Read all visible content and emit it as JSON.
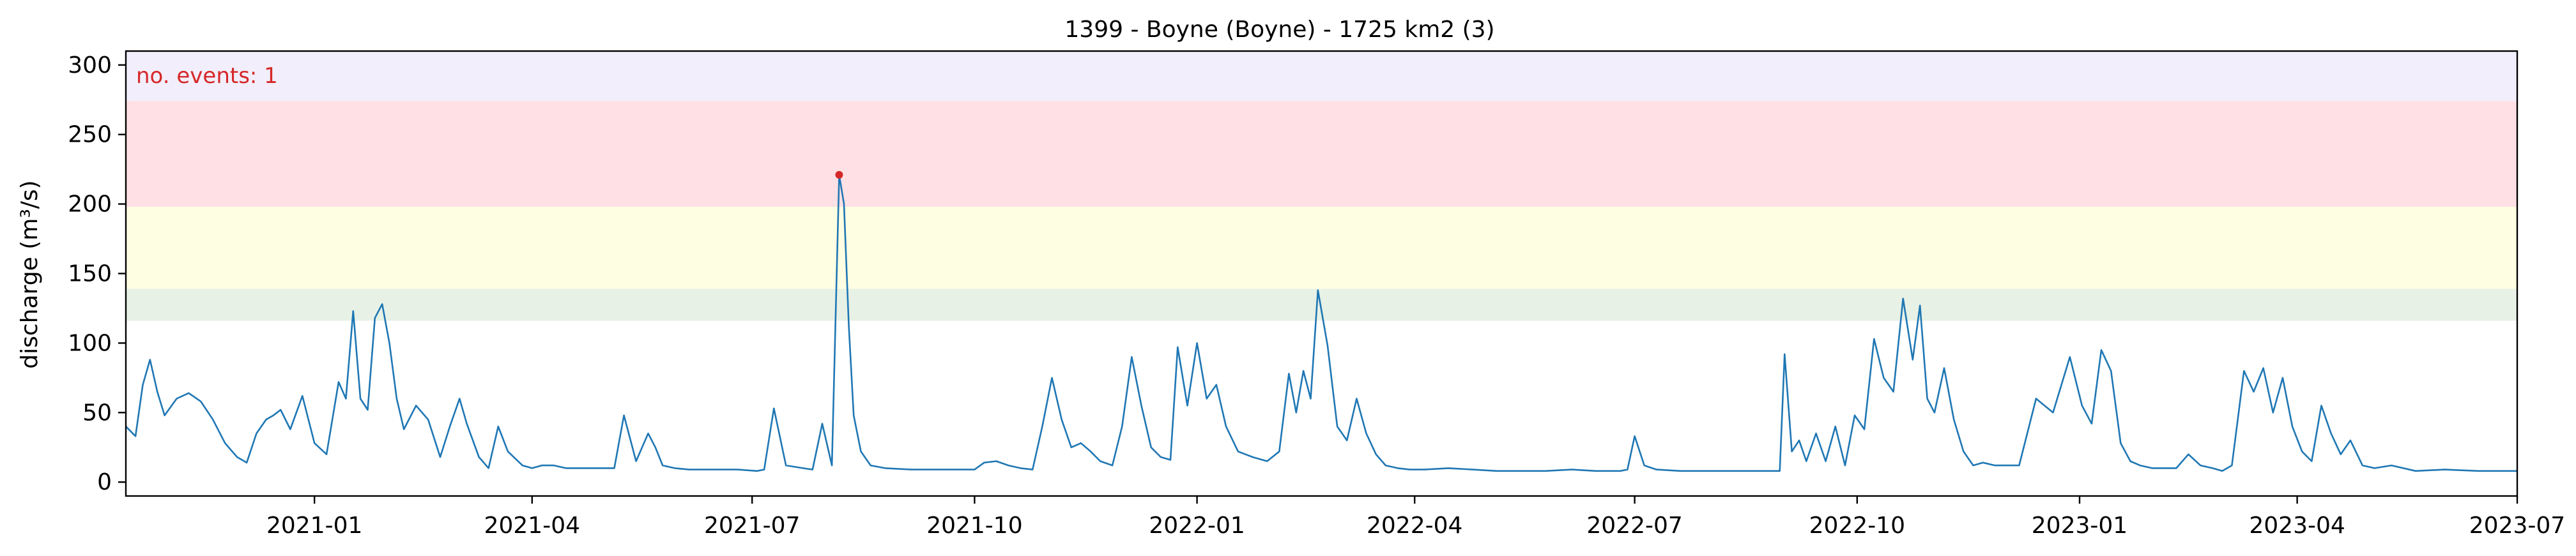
{
  "chart_data": {
    "type": "line",
    "title": "1399 - Boyne (Boyne) - 1725 km2 (3)",
    "xlabel": "",
    "ylabel": "discharge (m³/s)",
    "xlim": [
      "2020-10-15",
      "2023-07-01"
    ],
    "ylim": [
      -10,
      310
    ],
    "x_ticks": [
      "2021-01",
      "2021-04",
      "2021-07",
      "2021-10",
      "2022-01",
      "2022-04",
      "2022-07",
      "2022-10",
      "2023-01",
      "2023-04",
      "2023-07"
    ],
    "x_tick_dates": [
      "2021-01-01",
      "2021-04-01",
      "2021-07-01",
      "2021-10-01",
      "2022-01-01",
      "2022-04-01",
      "2022-07-01",
      "2022-10-01",
      "2023-01-01",
      "2023-04-01",
      "2023-07-01"
    ],
    "y_ticks": [
      0,
      50,
      100,
      150,
      200,
      250,
      300
    ],
    "grid": false,
    "colors": {
      "line": "#1f77b4",
      "event": "#d62728",
      "annotation": "#d62728",
      "band_1": "#e7f1e6",
      "band_2": "#fefee2",
      "band_3": "#ffe0e4",
      "band_4": "#f2eefb"
    },
    "bands": [
      {
        "from": 116,
        "to": 139,
        "color": "#e7f1e6"
      },
      {
        "from": 139,
        "to": 198,
        "color": "#fefee2"
      },
      {
        "from": 198,
        "to": 274,
        "color": "#ffe0e4"
      },
      {
        "from": 274,
        "to": 310,
        "color": "#f2eefb"
      }
    ],
    "annotation": "no. events: 1",
    "events": [
      {
        "x": "2021-08-06",
        "y": 221
      }
    ],
    "series": [
      {
        "x": [
          "2020-10-15",
          "2020-10-19",
          "2020-10-22",
          "2020-10-25",
          "2020-10-28",
          "2020-10-31",
          "2020-11-05",
          "2020-11-10",
          "2020-11-15",
          "2020-11-20",
          "2020-11-25",
          "2020-11-30",
          "2020-12-04",
          "2020-12-08",
          "2020-12-12",
          "2020-12-15",
          "2020-12-18",
          "2020-12-22",
          "2020-12-27",
          "2021-01-01",
          "2021-01-06",
          "2021-01-11",
          "2021-01-14",
          "2021-01-17",
          "2021-01-20",
          "2021-01-23",
          "2021-01-26",
          "2021-01-29",
          "2021-02-01",
          "2021-02-04",
          "2021-02-07",
          "2021-02-12",
          "2021-02-17",
          "2021-02-22",
          "2021-02-26",
          "2021-03-02",
          "2021-03-05",
          "2021-03-10",
          "2021-03-14",
          "2021-03-18",
          "2021-03-22",
          "2021-03-28",
          "2021-04-01",
          "2021-04-05",
          "2021-04-10",
          "2021-04-15",
          "2021-04-25",
          "2021-05-05",
          "2021-05-09",
          "2021-05-14",
          "2021-05-19",
          "2021-05-22",
          "2021-05-25",
          "2021-05-30",
          "2021-06-05",
          "2021-06-15",
          "2021-06-25",
          "2021-07-03",
          "2021-07-06",
          "2021-07-10",
          "2021-07-15",
          "2021-07-22",
          "2021-07-26",
          "2021-07-30",
          "2021-08-03",
          "2021-08-06",
          "2021-08-08",
          "2021-08-10",
          "2021-08-12",
          "2021-08-15",
          "2021-08-19",
          "2021-08-25",
          "2021-09-05",
          "2021-09-15",
          "2021-09-25",
          "2021-10-01",
          "2021-10-05",
          "2021-10-10",
          "2021-10-15",
          "2021-10-20",
          "2021-10-25",
          "2021-10-29",
          "2021-11-02",
          "2021-11-06",
          "2021-11-10",
          "2021-11-14",
          "2021-11-18",
          "2021-11-22",
          "2021-11-27",
          "2021-12-01",
          "2021-12-05",
          "2021-12-09",
          "2021-12-13",
          "2021-12-17",
          "2021-12-21",
          "2021-12-24",
          "2021-12-28",
          "2022-01-01",
          "2022-01-05",
          "2022-01-09",
          "2022-01-13",
          "2022-01-18",
          "2022-01-24",
          "2022-01-30",
          "2022-02-04",
          "2022-02-08",
          "2022-02-11",
          "2022-02-14",
          "2022-02-17",
          "2022-02-20",
          "2022-02-24",
          "2022-02-28",
          "2022-03-04",
          "2022-03-08",
          "2022-03-12",
          "2022-03-16",
          "2022-03-20",
          "2022-03-25",
          "2022-03-30",
          "2022-04-05",
          "2022-04-15",
          "2022-04-25",
          "2022-05-05",
          "2022-05-15",
          "2022-05-25",
          "2022-06-05",
          "2022-06-15",
          "2022-06-25",
          "2022-06-28",
          "2022-07-01",
          "2022-07-05",
          "2022-07-10",
          "2022-07-20",
          "2022-08-05",
          "2022-08-20",
          "2022-08-30",
          "2022-09-01",
          "2022-09-04",
          "2022-09-07",
          "2022-09-10",
          "2022-09-14",
          "2022-09-18",
          "2022-09-22",
          "2022-09-26",
          "2022-09-30",
          "2022-10-04",
          "2022-10-08",
          "2022-10-12",
          "2022-10-16",
          "2022-10-20",
          "2022-10-24",
          "2022-10-27",
          "2022-10-30",
          "2022-11-02",
          "2022-11-06",
          "2022-11-10",
          "2022-11-14",
          "2022-11-18",
          "2022-11-22",
          "2022-11-27",
          "2022-12-02",
          "2022-12-07",
          "2022-12-14",
          "2022-12-21",
          "2022-12-28",
          "2023-01-02",
          "2023-01-06",
          "2023-01-10",
          "2023-01-14",
          "2023-01-18",
          "2023-01-22",
          "2023-01-26",
          "2023-01-31",
          "2023-02-05",
          "2023-02-10",
          "2023-02-15",
          "2023-02-20",
          "2023-02-25",
          "2023-03-01",
          "2023-03-05",
          "2023-03-10",
          "2023-03-14",
          "2023-03-18",
          "2023-03-22",
          "2023-03-26",
          "2023-03-30",
          "2023-04-03",
          "2023-04-07",
          "2023-04-11",
          "2023-04-15",
          "2023-04-19",
          "2023-04-23",
          "2023-04-28",
          "2023-05-03",
          "2023-05-10",
          "2023-05-20",
          "2023-06-01",
          "2023-06-15",
          "2023-07-01"
        ],
        "y": [
          40,
          33,
          70,
          88,
          65,
          48,
          60,
          64,
          58,
          45,
          28,
          18,
          14,
          35,
          45,
          48,
          52,
          38,
          62,
          28,
          20,
          72,
          60,
          123,
          60,
          52,
          118,
          128,
          100,
          60,
          38,
          55,
          45,
          18,
          40,
          60,
          42,
          18,
          10,
          40,
          22,
          12,
          10,
          12,
          12,
          10,
          10,
          10,
          48,
          15,
          35,
          25,
          12,
          10,
          9,
          9,
          9,
          8,
          9,
          53,
          12,
          10,
          9,
          42,
          12,
          221,
          200,
          112,
          48,
          22,
          12,
          10,
          9,
          9,
          9,
          9,
          14,
          15,
          12,
          10,
          9,
          40,
          75,
          45,
          25,
          28,
          22,
          15,
          12,
          40,
          90,
          55,
          25,
          18,
          16,
          97,
          55,
          100,
          60,
          70,
          40,
          22,
          18,
          15,
          22,
          78,
          50,
          80,
          60,
          138,
          98,
          40,
          30,
          60,
          35,
          20,
          12,
          10,
          9,
          9,
          10,
          9,
          8,
          8,
          8,
          9,
          8,
          8,
          9,
          33,
          12,
          9,
          8,
          8,
          8,
          8,
          92,
          22,
          30,
          15,
          35,
          15,
          40,
          12,
          48,
          38,
          103,
          75,
          65,
          132,
          88,
          127,
          60,
          50,
          82,
          45,
          22,
          12,
          14,
          12,
          12,
          12,
          60,
          50,
          90,
          55,
          42,
          95,
          80,
          28,
          15,
          12,
          10,
          10,
          10,
          20,
          12,
          10,
          8,
          12,
          80,
          65,
          82,
          50,
          75,
          40,
          22,
          15,
          55,
          35,
          20,
          30,
          12,
          10,
          12,
          8,
          9,
          8,
          8
        ]
      }
    ]
  }
}
